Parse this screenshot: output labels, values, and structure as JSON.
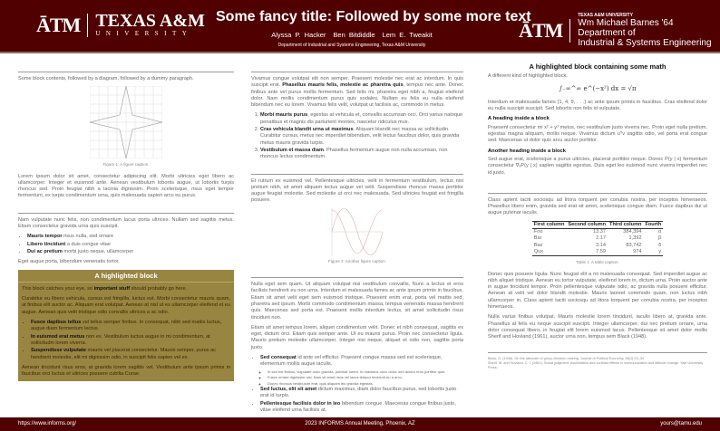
{
  "header": {
    "logo_left": {
      "mark": "ĀTM",
      "name": "TEXAS A&M",
      "sub": "UNIVERSITY"
    },
    "title": "Some fancy title: Followed by some more text",
    "authors": [
      "Alyssa P. Hacker",
      "Ben Bitdiddle",
      "Lem E. Tweakit"
    ],
    "affiliation": "Department of Industrial and Systems Engineering, Texas A&M University",
    "logo_right": {
      "mark": "ĀTM",
      "small": "TEXAS A&M UNIVERSITY",
      "line1": "Wm Michael Barnes '64 Department of",
      "line2": "Industrial & Systems Engineering"
    }
  },
  "col1": {
    "intro": "Some block contents, followed by a diagram, followed by a dummy paragraph.",
    "fig1_caption": "Figure 1: A figure caption.",
    "p1": "Lorem ipsum dolor sit amet, consectetur adipiscing elit. Morbi ultricies eget libero ac ullamcorper. Integer et euismod ante. Aenean vestibulum lobortis augue, ut lobortis turpis rhoncus sed. Proin feugiat nibh a lacinia dignissim. Proin scelerisque, risus eget tempor fermentum, ex turpis condimentum urna, quis malesuada sapien arcu eu purus.",
    "p2": "Nam vulputate nunc felis, non condimentum lacus porta ultrices. Nullam sed sagittis metus. Etiam consectetur gravida urna quis suscipit.",
    "bullets": [
      {
        "b": "Mauris tempor",
        "t": " risus nulla, sed ornare"
      },
      {
        "b": "Libero tincidunt",
        "t": " a duis congue vitae"
      },
      {
        "b": "Dui ac pretium",
        "t": " morbi justo neque, ullamcorper"
      }
    ],
    "p3": "Eget augue porta, bibendum venenatis tortor.",
    "hb": {
      "title": "A highlighted block",
      "l1a": "This block catches your eye, so ",
      "l1b": "important stuff",
      "l1c": " should probably go here.",
      "p": "Curabitur eu libero vehicula, cursus est fringilla, luctus est. Morbi consectetur mauris quam, at finibus elit auctor ac. Aliquam erat volutpat. Aenean at nisl ut ex ullamcorper eleifend et eu augue. Aenean quis velit tristique odio convallis ultrices a ac odio.",
      "bullets": [
        {
          "b": "Fusce dapibus tellus",
          "t": " vel tellus semper finibus. In consequat, nibh sed mattis luctus, augue diam fermentum lectus."
        },
        {
          "b": "In euismod erat metus",
          "t": " non ex. Vestibulum luctus augue in mi condimentum, at sollicitudin lorem viverra."
        },
        {
          "b": "Suspendisse vulputate",
          "t": " mauris vel placerat consectetur. Mauris semper, purus ac hendrerit molestie, elit mi dignissim odio, in suscipit felis sapien vel ex."
        }
      ],
      "p2": "Aenean tincidunt risus eros, at gravida lorem sagittis vel. Vestibulum ante ipsum primis in faucibus orci luctus et ultrices posuere cubilia Curae."
    }
  },
  "col2": {
    "p1a": "Vivamus congue volutpat elit non semper. Praesent molestie nec erat ac interdum. In quis suscipit erat. ",
    "p1b": "Phasellus mauris felis, molestie ac pharetra quis",
    "p1c": ", tempus nec ante. Donec finibus ante vel purus mollis fermentum. Sed felis mi, pharetra eget nibh a, feugiat eleifend dolor. Nam mollis condimentum purus quis sodales. Nullam eu felis eu nulla eleifend bibendum nec eu lorem. Vivamus felis velit, volutpat ut facilisis ac, commodo in metus.",
    "list": [
      {
        "b": "Morbi mauris purus",
        "t": ", egestas at vehicula et, convallis accumsan orci. Orci varius natoque penatibus et magnis dis parturient montes, nascetur ridiculus mus."
      },
      {
        "b": "Cras vehicula blandit urna ut maximus",
        "t": ". Aliquam blandit nec massa ac sollicitudin. Curabitur cursus, metus nec imperdiet bibendum, velit lectus faucibus dolor, quis gravida metus mauris gravida turpis."
      },
      {
        "b": "Vestibulum et massa diam",
        "t": ". Phasellus fermentum augue non nulla accumsan, non rhoncus lectus condimentum."
      }
    ],
    "p2": "Et rutrum ex euismod vel. Pellentesque ultricies, velit in fermentum vestibulum, lectus nisi pretium nibh, sit amet aliquam lectus augue vel velit. Suspendisse rhoncus massa porttitor augue feugiat molestie. Sed molestie ut orci nec malesuada. Sed ultricies feugiat est fringilla posuere.",
    "fig2_caption": "Figure 2: Another figure caption.",
    "p3": "Nulla eget sem quam. Ut aliquam volutpat nisi vestibulum convallis. Nunc a lectus et eros facilisis hendrerit eu non urna. Interdum et malesuada fames ac ante ipsum primis in faucibus. Etiam sit amet velit eget sem euismod tristique. Praesent enim erat, porta vel mattis sed, pharetra sed ipsum. Morbi commodo condimentum massa, tempus venenatis massa hendrerit quis. Maecenas sed porta est. Praesent mollis interdum lectus, sit amet sollicitudin risus tincidunt non.",
    "p4": "Etiam sit amet tempus lorem, aliquet condimentum velit. Donec et nibh consequat, sagittis ex eget, dictum orci. Etiam quis semper ante. Ut eu mauris purus. Proin nec consectetur ligula. Mauris pretium molestie ullamcorper. Integer nisi neque, aliquet et odio non, sagittis porta justo.",
    "bullets": [
      {
        "b": "Sed consequat",
        "t": " id ante vel efficitur. Praesent congue massa sed est scelerisque, elementum mollis augue iaculis.",
        "sub": [
          "In sed est finibus, vulputate nunc gravida, pulvinar lorem. In maximus nunc dolor, sed auctor eros porttitor quis.",
          "Fusce ornare dignissim nisi. Nam sit amet risus vel lacus tempor tincidunt eu a arcu.",
          "Donec rhoncus vestibulum erat, quis aliquam leo gravida egestas."
        ]
      },
      {
        "b": "Sed luctus, elit sit amet",
        "t": " dictum maximus, diam dolor faucibus purus, sed lobortis justo erat id turpis."
      },
      {
        "b": "Pellentesque facilisis dolor in leo",
        "t": " bibendum congue. Maecenas congue finibus justo, vitae eleifend urna facilisis at."
      }
    ]
  },
  "col3": {
    "title": "A highlighted block containing some math",
    "intro": "A different kind of highlighted block.",
    "eq": "∫₋∞^∞ e^(−x²) dx = √π",
    "p1": "Interdum et malesuada fames {1, 4, 9, . . .} ac ante ipsum primis in faucibus. Cras eleifend dolor eu nulla suscipit suscipit. Sed lobortis non felis id vulputate.",
    "h1": "A heading inside a block",
    "p2": "Praesent consectetur mi x² + y² metus, nec vestibulum justo viverra nec. Proin eget nulla pretium, egestas magna aliquam, mollis neque. Vivamus dictum uᵀv sagittis odio, vel porta erat congue sed. Maecenas ut dolor quis arcu auctor porttitor.",
    "h2": "Another heading inside a block",
    "p3": "Sed augue erat, scelerisque a purus ultricies, placerat porttitor neque. Donec P(y | x) fermentum consectetur ∇ₓP(y | x) sapien sagittis egestas. Duis eget leo euismod nunc viverra imperdiet nec id justo.",
    "p4": "Class aptent taciti sociosqu ad litora torquent per conubia nostra, per inceptos himenaeos. Phasellus libero enim, gravida sed erat sit amet, scelerisque congue diam. Fusce dapibus dui ut augue pulvinar iaculis.",
    "table": {
      "headers": [
        "First column",
        "Second column",
        "Third column",
        "Fourth"
      ],
      "rows": [
        [
          "Foo",
          "13.37",
          "384,394",
          "α"
        ],
        [
          "Bar",
          "2.17",
          "1,392",
          "β"
        ],
        [
          "Baz",
          "3.14",
          "83,742",
          "δ"
        ],
        [
          "Qux",
          "7.59",
          "974",
          "γ"
        ]
      ],
      "caption": "Table 1: A table caption."
    },
    "p5": "Donec quis posuere ligula. Nunc feugiat elit a mi malesuada consequat. Sed imperdiet augue ac nibh aliquet tristique. Aenean eu tortor vulputate, eleifend lorem in, dictum urna. Proin auctor ante in augue tincidunt tempor. Proin pellentesque vulputate odio, ac gravida nulla posuere efficitur. Aenean at velit vel dolor blandit molestie. Mauris laoreet commodo quam, non luctus nibh ullamcorper in. Class aptent taciti sociosqu ad litora torquent per conubia nostra, per inceptos himenaeos.",
    "p6": "Nulla varius finibus volutpat. Mauris molestie lorem tincidunt, iaculis libero at, gravida ante. Phasellus at felis eu neque suscipit suscipit. Integer ullamcorper, dui nec pretium ornare, urna dolor consequat libero, in feugiat elit lorem euismod lacus. Pellentesque sit amet dolor mollis Sherif and Hovland (1961), auctor urna non, tempus sem Black (1948).",
    "refs": [
      "Black, D. (1948). On the rationale of group decision-making. Journal of Political Economy, 56(1):23–34.",
      "Sherif, M. and Hovland, C. I. (1961). Social judgment: Assimilation and contrast effects in communication and attitude change. Yale University Press."
    ]
  },
  "footer": {
    "left": "https://www.informs.org/",
    "center": "2023 INFORMS Annual Meeting, Phoenix, AZ",
    "right": "yours@tamu.edu"
  },
  "colors": {
    "maroon": "#500000",
    "gold_block": "#998542"
  }
}
